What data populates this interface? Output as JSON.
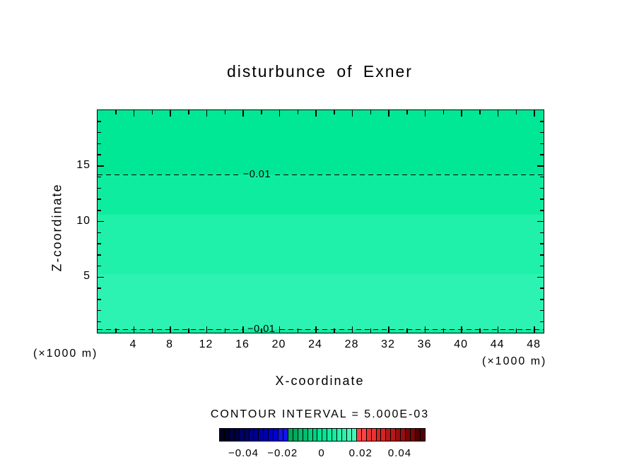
{
  "chart_data": {
    "type": "contour",
    "title": "disturbunce of Exner",
    "xlabel": "X-coordinate",
    "ylabel": "Z-coordinate",
    "x_units_left": "(×1000 m)",
    "x_units_right": "(×1000 m)",
    "contour_interval_label": "CONTOUR INTERVAL = 5.000E-03",
    "contour_interval_value": 0.005,
    "xlim": [
      0,
      49
    ],
    "ylim": [
      0,
      20
    ],
    "x_major_ticks": [
      4,
      8,
      12,
      16,
      20,
      24,
      28,
      32,
      36,
      40,
      44,
      48
    ],
    "x_minor_step": 2,
    "y_major_ticks": [
      5,
      10,
      15
    ],
    "y_minor_step": 1,
    "grid": false,
    "background_color": "#ffffff",
    "fill_bands": [
      {
        "z0": 14.2,
        "z1": 20,
        "value_range": "-0.015 to -0.01",
        "color": "#00E796"
      },
      {
        "z0": 10.6,
        "z1": 14.2,
        "value_range": "-0.01 to -0.0075",
        "color": "#0EECA0"
      },
      {
        "z0": 5.3,
        "z1": 10.6,
        "value_range": "-0.0075 to -0.005",
        "color": "#1FF0AA"
      },
      {
        "z0": 0.3,
        "z1": 5.3,
        "value_range": "-0.005 to 0",
        "color": "#2CF3B1"
      },
      {
        "z0": 0,
        "z1": 0.3,
        "value_range": "-0.01 to -0.0075",
        "color": "#0EECA0"
      }
    ],
    "contour_lines": [
      {
        "z": 14.2,
        "value": -0.01,
        "label": "−0.01",
        "label_x": 17.5,
        "style": "dashed"
      },
      {
        "z": 0.3,
        "value": -0.01,
        "label": "−0.01",
        "label_x": 18,
        "style": "dashed"
      }
    ],
    "colorbar": {
      "min": -0.0525,
      "max": 0.0525,
      "interval": 0.005,
      "colors": [
        "#000022",
        "#000044",
        "#000066",
        "#000088",
        "#0000AA",
        "#0000CC",
        "#1414E6",
        "#00A85C",
        "#00BE6E",
        "#00D280",
        "#00E392",
        "#12ECA0",
        "#2BF1AC",
        "#45F5B8",
        "#FF4343",
        "#EC3232",
        "#D42424",
        "#B81818",
        "#990E0E",
        "#770707",
        "#520202"
      ],
      "tick_labels": [
        {
          "value": -0.04,
          "text": "−0.04"
        },
        {
          "value": -0.02,
          "text": "−0.02"
        },
        {
          "value": 0,
          "text": "0"
        },
        {
          "value": 0.02,
          "text": "0.02"
        },
        {
          "value": 0.04,
          "text": "0.04"
        }
      ]
    }
  }
}
